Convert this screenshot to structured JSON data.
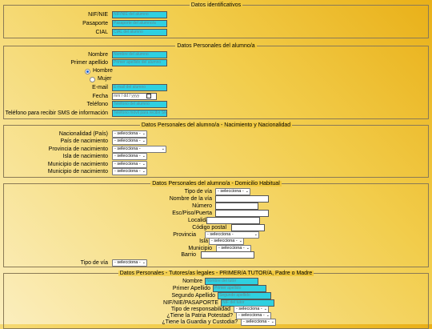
{
  "ident": {
    "legend": "Datos identificativos",
    "nif_label": "NIF/NIE",
    "nif_ph": "NIF/NIE del alumno",
    "pasaporte_label": "Pasaporte",
    "pasaporte_ph": "Pasaporte del alumno/a",
    "cial_label": "CIAL",
    "cial_ph": "CIAL del alumno"
  },
  "personal": {
    "legend": "Datos Personales del alumno/a",
    "nombre_label": "Nombre",
    "nombre_ph": "Nombre del alumno",
    "apellido_label": "Primer apellido",
    "apellido_ph": "Primer apellido del alumno",
    "hombre": "Hombre",
    "mujer": "Mujer",
    "email_label": "E-mail",
    "email_ph": "E-mail del alumno",
    "fecha_label": "Fecha",
    "fecha_value": "mm / dd / yyyy",
    "telefono_label": "Teléfono",
    "telefono_ph": "Teléfono del alumno",
    "sms_label": "Teléfono para recibir SMS de información",
    "sms_ph": "Teléfono móvil para recibir SMS"
  },
  "nacimiento": {
    "legend": "Datos Personales del alumno/a - Nacimiento y Nacionalidad",
    "rows": [
      {
        "label": "Nacionalidad (País)",
        "value": "- selecciona -"
      },
      {
        "label": "País de nacimiento",
        "value": "- selecciona -"
      },
      {
        "label": "Provincia de nacimiento",
        "value": "- selecciona -"
      },
      {
        "label": "Isla de nacimiento",
        "value": "- selecciona -"
      },
      {
        "label": "Municipio de nacimiento",
        "value": "- selecciona -"
      },
      {
        "label": "Municipio de nacimiento",
        "value": "- selecciona -"
      }
    ]
  },
  "domicilio": {
    "legend": "Datos Personales del alumno/a - Domicilio Habitual",
    "tipo_via_label": "Tipo de vía",
    "tipo_via_value": "- selecciona -",
    "nombre_via_label": "Nombre de la vía",
    "numero_label": "Número",
    "esc_label": "Esc/Piso/Puerta",
    "localidad_label": "Localidad",
    "cp_label": "Código postal",
    "provincia_label": "Provincia",
    "provincia_value": "- selecciona -",
    "isla_label": "Isla",
    "isla_value": "- selecciona -",
    "municipio_label": "Municipio",
    "municipio_value": "- selecciona -",
    "barrio_label": "Barrio",
    "tipo_via2_label": "Tipo de vía",
    "tipo_via2_value": "- selecciona -"
  },
  "tutores": {
    "legend": "Datos Personales - Tutores/as legales - PRIMER/A TUTOR/A, Padre o Madre",
    "nombre_label": "Nombre",
    "nombre_ph": "Nombre del tutor",
    "apellido1_label": "Primer Apellido",
    "apellido1_ph": "Primer apellido",
    "apellido2_label": "Segundo Apellido",
    "apellido2_ph": "Segundo apellido",
    "nif_label": "NIF/NIE/PASAPORTE",
    "nif_ph": "NIF del tutor",
    "resp_label": "Tipo de responsabilidad",
    "resp_value": "- selecciona -",
    "patria_label": "¿Tiene la Patria Potestad?",
    "patria_value": "- selecciona -",
    "guardia_label": "¿Tiene la Guardia y Custodia?",
    "guardia_value": "- selecciona -"
  }
}
